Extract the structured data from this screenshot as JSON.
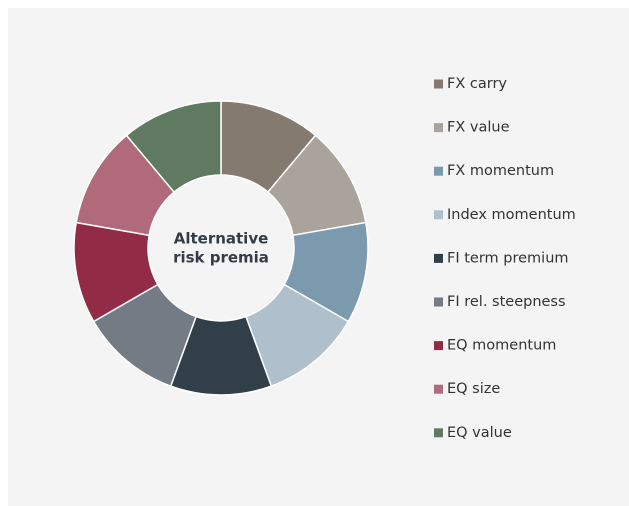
{
  "chart_data": {
    "type": "donut",
    "center_label": [
      "Alternative",
      "risk premia"
    ],
    "categories": [
      "FX carry",
      "FX value",
      "FX momentum",
      "Index momentum",
      "FI term premium",
      "FI rel. steepness",
      "EQ momentum",
      "EQ size",
      "EQ value"
    ],
    "values": [
      11.1,
      11.1,
      11.1,
      11.1,
      11.1,
      11.1,
      11.1,
      11.1,
      11.1
    ],
    "colors": [
      "#857a6f",
      "#aaa39c",
      "#7b9aae",
      "#afc0cc",
      "#313f49",
      "#737c84",
      "#922b45",
      "#b06a7b",
      "#5f7a60"
    ],
    "legend": "right"
  }
}
